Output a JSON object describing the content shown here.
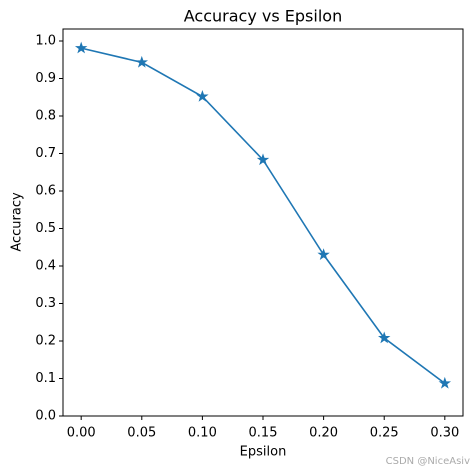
{
  "chart_data": {
    "type": "line",
    "title": "Accuracy vs Epsilon",
    "x_label": "Epsilon",
    "y_label": "Accuracy",
    "x": [
      0,
      0.05,
      0.1,
      0.15,
      0.2,
      0.25,
      0.3
    ],
    "series": [
      {
        "name": "Accuracy",
        "color": "#1f77b4",
        "values": [
          0.981,
          0.943,
          0.852,
          0.683,
          0.43,
          0.208,
          0.087
        ]
      }
    ],
    "marker": "star",
    "xlim": [
      -0.015,
      0.315
    ],
    "xticks": [
      {
        "value": 0,
        "label": "0.00"
      },
      {
        "value": 0.05,
        "label": "0.05"
      },
      {
        "value": 0.1,
        "label": "0.10"
      },
      {
        "value": 0.15,
        "label": "0.15"
      },
      {
        "value": 0.2,
        "label": "0.20"
      },
      {
        "value": 0.25,
        "label": "0.25"
      },
      {
        "value": 0.3,
        "label": "0.30"
      }
    ],
    "ylim": [
      0,
      1.032
    ],
    "yticks": [
      {
        "value": 0,
        "label": "0.0"
      },
      0.1,
      0.2,
      0.3,
      0.4,
      0.5,
      0.6,
      0.7,
      0.8,
      0.9,
      {
        "value": 1,
        "label": "1.0"
      }
    ],
    "watermark": "CSDN @NiceAsiv"
  }
}
